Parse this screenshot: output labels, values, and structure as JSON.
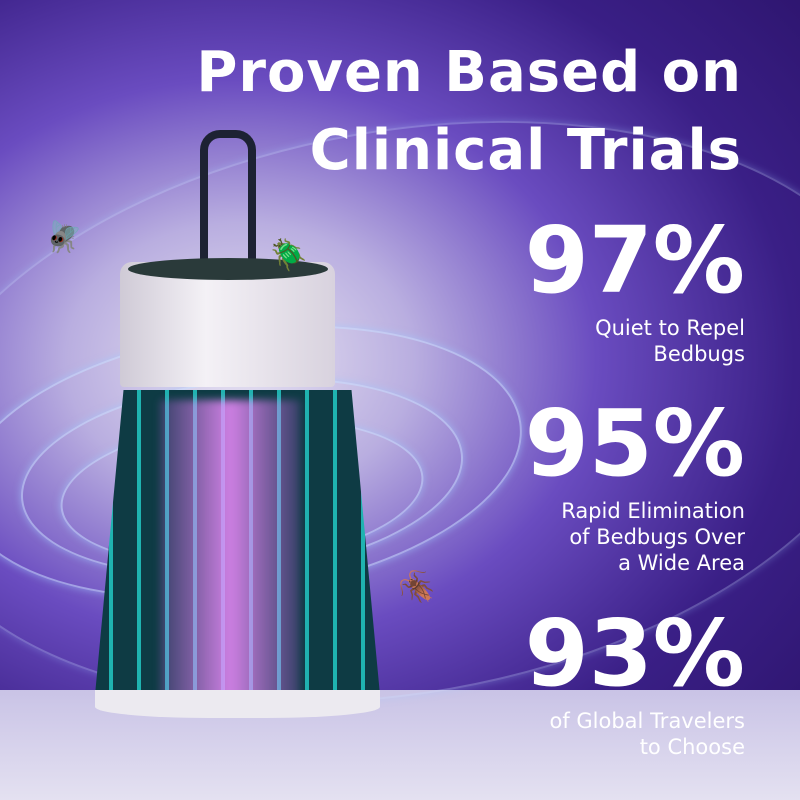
{
  "title": {
    "line1": "Proven Based on",
    "line2": "Clinical Trials"
  },
  "stats": [
    {
      "value": "97%",
      "caption": [
        "Quiet to Repel",
        "Bedbugs"
      ]
    },
    {
      "value": "95%",
      "caption": [
        "Rapid Elimination",
        "of Bedbugs Over",
        "a Wide Area"
      ]
    },
    {
      "value": "93%",
      "caption": [
        "of Global Travelers",
        "to Choose"
      ]
    }
  ]
}
